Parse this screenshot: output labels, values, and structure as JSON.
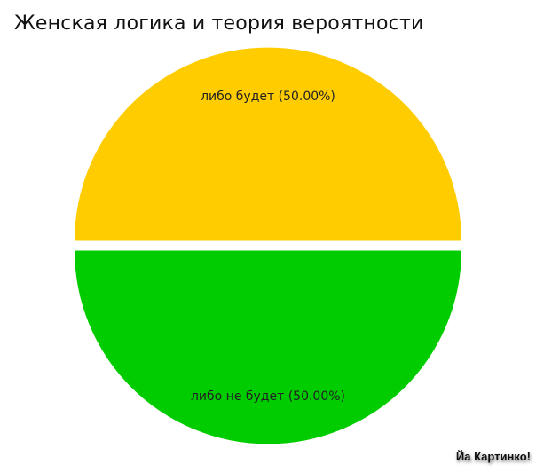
{
  "chart_data": {
    "type": "pie",
    "title": "Женская логика и теория вероятности",
    "slices": [
      {
        "label": "либо будет (50.00%)",
        "value": 50,
        "color": "#FFCC00"
      },
      {
        "label": "либо не будет (50.00%)",
        "value": 50,
        "color": "#00CC00"
      }
    ],
    "exploded": true,
    "legend": "none"
  },
  "watermark": "Йа Картинко!"
}
